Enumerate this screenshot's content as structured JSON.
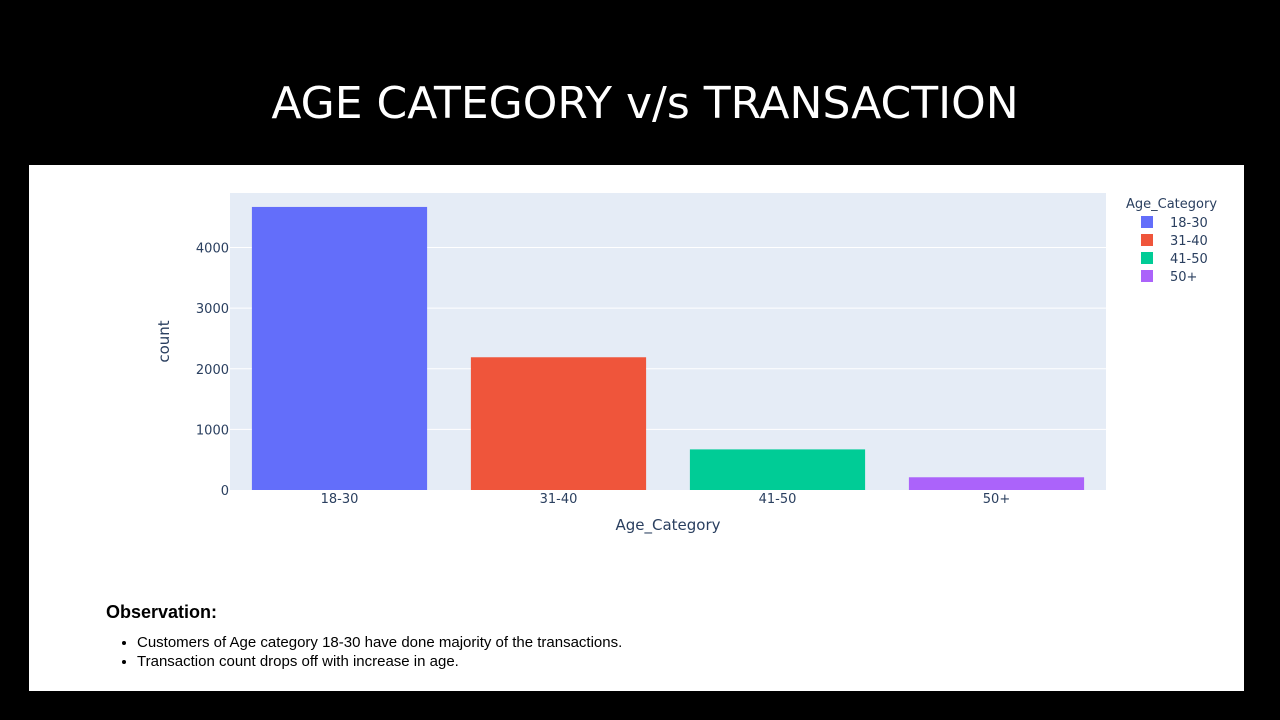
{
  "slide": {
    "title": "AGE CATEGORY v/s TRANSACTION"
  },
  "chart_data": {
    "type": "bar",
    "categories": [
      "18-30",
      "31-40",
      "41-50",
      "50+"
    ],
    "values": [
      4670,
      2190,
      670,
      210
    ],
    "colors": [
      "#636efa",
      "#ef553b",
      "#00cc96",
      "#ab63fa"
    ],
    "xlabel": "Age_Category",
    "ylabel": "count",
    "ylim": [
      0,
      4900
    ],
    "yticks": [
      0,
      1000,
      2000,
      3000,
      4000
    ],
    "grid": true,
    "plot_background": "#e5ecf6",
    "legend": {
      "title": "Age_Category",
      "placement": "top-right",
      "entries": [
        "18-30",
        "31-40",
        "41-50",
        "50+"
      ]
    }
  },
  "observation": {
    "heading": "Observation:",
    "points": [
      "Customers of Age category 18-30 have done majority of the transactions.",
      "Transaction count drops off with increase in age."
    ]
  }
}
